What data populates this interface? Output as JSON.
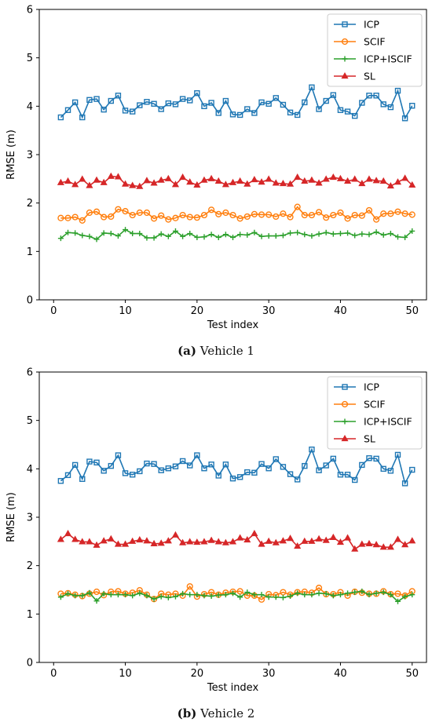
{
  "chart_data": [
    {
      "id": "vehicle1",
      "type": "line",
      "caption_letter": "(a)",
      "caption_text": " Vehicle 1",
      "xlabel": "Test index",
      "ylabel": "RMSE (m)",
      "xlim": [
        -2,
        52
      ],
      "ylim": [
        0,
        6
      ],
      "xticks": [
        0,
        10,
        20,
        30,
        40,
        50
      ],
      "yticks": [
        0,
        1,
        2,
        3,
        4,
        5,
        6
      ],
      "legend_position": "top-right",
      "x": [
        1,
        2,
        3,
        4,
        5,
        6,
        7,
        8,
        9,
        10,
        11,
        12,
        13,
        14,
        15,
        16,
        17,
        18,
        19,
        20,
        21,
        22,
        23,
        24,
        25,
        26,
        27,
        28,
        29,
        30,
        31,
        32,
        33,
        34,
        35,
        36,
        37,
        38,
        39,
        40,
        41,
        42,
        43,
        44,
        45,
        46,
        47,
        48,
        49,
        50
      ],
      "series": [
        {
          "name": "ICP",
          "color": "#1f77b4",
          "marker": "square",
          "values": [
            3.77,
            3.92,
            4.08,
            3.77,
            4.13,
            4.15,
            3.93,
            4.11,
            4.22,
            3.91,
            3.89,
            4.02,
            4.09,
            4.05,
            3.94,
            4.06,
            4.04,
            4.15,
            4.12,
            4.27,
            4.0,
            4.07,
            3.86,
            4.11,
            3.83,
            3.82,
            3.94,
            3.86,
            4.08,
            4.05,
            4.17,
            4.03,
            3.87,
            3.82,
            4.08,
            4.39,
            3.94,
            4.11,
            4.23,
            3.92,
            3.89,
            3.8,
            4.07,
            4.22,
            4.22,
            4.04,
            3.98,
            4.32,
            3.75,
            4.01
          ]
        },
        {
          "name": "SCIF",
          "color": "#ff7f0e",
          "marker": "circle",
          "values": [
            1.69,
            1.69,
            1.71,
            1.64,
            1.8,
            1.82,
            1.71,
            1.72,
            1.87,
            1.83,
            1.75,
            1.8,
            1.8,
            1.68,
            1.74,
            1.66,
            1.69,
            1.75,
            1.71,
            1.7,
            1.75,
            1.86,
            1.77,
            1.8,
            1.75,
            1.68,
            1.72,
            1.77,
            1.76,
            1.76,
            1.72,
            1.78,
            1.71,
            1.92,
            1.75,
            1.75,
            1.81,
            1.7,
            1.75,
            1.8,
            1.68,
            1.75,
            1.74,
            1.85,
            1.66,
            1.78,
            1.78,
            1.82,
            1.78,
            1.76
          ]
        },
        {
          "name": "ICP+ISCIF",
          "color": "#2ca02c",
          "marker": "plus",
          "values": [
            1.27,
            1.39,
            1.38,
            1.33,
            1.31,
            1.25,
            1.38,
            1.37,
            1.32,
            1.45,
            1.37,
            1.37,
            1.28,
            1.28,
            1.36,
            1.31,
            1.42,
            1.31,
            1.37,
            1.29,
            1.3,
            1.35,
            1.29,
            1.35,
            1.29,
            1.35,
            1.34,
            1.39,
            1.31,
            1.32,
            1.32,
            1.33,
            1.38,
            1.39,
            1.35,
            1.32,
            1.36,
            1.39,
            1.36,
            1.37,
            1.38,
            1.33,
            1.36,
            1.35,
            1.4,
            1.34,
            1.37,
            1.3,
            1.29,
            1.42
          ]
        },
        {
          "name": "SL",
          "color": "#d62728",
          "marker": "triangle",
          "values": [
            2.42,
            2.45,
            2.38,
            2.49,
            2.36,
            2.47,
            2.42,
            2.55,
            2.54,
            2.39,
            2.36,
            2.34,
            2.46,
            2.41,
            2.47,
            2.5,
            2.38,
            2.53,
            2.43,
            2.37,
            2.47,
            2.5,
            2.45,
            2.38,
            2.42,
            2.45,
            2.39,
            2.48,
            2.43,
            2.49,
            2.41,
            2.4,
            2.39,
            2.53,
            2.45,
            2.47,
            2.41,
            2.49,
            2.53,
            2.5,
            2.45,
            2.49,
            2.4,
            2.49,
            2.46,
            2.45,
            2.35,
            2.43,
            2.51,
            2.37
          ]
        }
      ]
    },
    {
      "id": "vehicle2",
      "type": "line",
      "caption_letter": "(b)",
      "caption_text": " Vehicle 2",
      "xlabel": "Test index",
      "ylabel": "RMSE (m)",
      "xlim": [
        -2,
        52
      ],
      "ylim": [
        0,
        6
      ],
      "xticks": [
        0,
        10,
        20,
        30,
        40,
        50
      ],
      "yticks": [
        0,
        1,
        2,
        3,
        4,
        5,
        6
      ],
      "legend_position": "top-right",
      "x": [
        1,
        2,
        3,
        4,
        5,
        6,
        7,
        8,
        9,
        10,
        11,
        12,
        13,
        14,
        15,
        16,
        17,
        18,
        19,
        20,
        21,
        22,
        23,
        24,
        25,
        26,
        27,
        28,
        29,
        30,
        31,
        32,
        33,
        34,
        35,
        36,
        37,
        38,
        39,
        40,
        41,
        42,
        43,
        44,
        45,
        46,
        47,
        48,
        49,
        50
      ],
      "series": [
        {
          "name": "ICP",
          "color": "#1f77b4",
          "marker": "square",
          "values": [
            3.75,
            3.87,
            4.08,
            3.79,
            4.15,
            4.13,
            3.96,
            4.06,
            4.28,
            3.91,
            3.88,
            3.95,
            4.11,
            4.1,
            3.97,
            4.01,
            4.05,
            4.16,
            4.07,
            4.28,
            4.01,
            4.09,
            3.86,
            4.09,
            3.8,
            3.83,
            3.93,
            3.92,
            4.1,
            4.01,
            4.2,
            4.04,
            3.89,
            3.78,
            4.06,
            4.4,
            3.97,
            4.07,
            4.21,
            3.88,
            3.88,
            3.77,
            4.08,
            4.22,
            4.21,
            4.0,
            3.96,
            4.29,
            3.7,
            3.98
          ]
        },
        {
          "name": "SCIF",
          "color": "#ff7f0e",
          "marker": "circle",
          "values": [
            1.42,
            1.43,
            1.4,
            1.37,
            1.42,
            1.46,
            1.39,
            1.46,
            1.47,
            1.42,
            1.44,
            1.49,
            1.4,
            1.31,
            1.42,
            1.4,
            1.42,
            1.38,
            1.57,
            1.36,
            1.41,
            1.45,
            1.4,
            1.44,
            1.46,
            1.47,
            1.38,
            1.38,
            1.3,
            1.41,
            1.39,
            1.45,
            1.4,
            1.45,
            1.46,
            1.44,
            1.54,
            1.41,
            1.41,
            1.45,
            1.38,
            1.46,
            1.44,
            1.42,
            1.42,
            1.47,
            1.41,
            1.42,
            1.38,
            1.47
          ]
        },
        {
          "name": "ICP+ISCIF",
          "color": "#2ca02c",
          "marker": "plus",
          "values": [
            1.35,
            1.42,
            1.38,
            1.38,
            1.44,
            1.27,
            1.42,
            1.4,
            1.4,
            1.4,
            1.38,
            1.43,
            1.38,
            1.31,
            1.36,
            1.34,
            1.36,
            1.42,
            1.4,
            1.4,
            1.38,
            1.37,
            1.39,
            1.4,
            1.43,
            1.35,
            1.45,
            1.4,
            1.4,
            1.35,
            1.35,
            1.34,
            1.37,
            1.43,
            1.4,
            1.4,
            1.43,
            1.42,
            1.38,
            1.4,
            1.43,
            1.45,
            1.47,
            1.4,
            1.43,
            1.45,
            1.4,
            1.26,
            1.36,
            1.4
          ]
        },
        {
          "name": "SL",
          "color": "#d62728",
          "marker": "triangle",
          "values": [
            2.54,
            2.66,
            2.54,
            2.49,
            2.49,
            2.42,
            2.51,
            2.55,
            2.44,
            2.44,
            2.5,
            2.53,
            2.51,
            2.45,
            2.46,
            2.51,
            2.63,
            2.47,
            2.49,
            2.48,
            2.49,
            2.52,
            2.49,
            2.47,
            2.49,
            2.57,
            2.53,
            2.66,
            2.44,
            2.5,
            2.47,
            2.51,
            2.56,
            2.4,
            2.5,
            2.5,
            2.55,
            2.52,
            2.58,
            2.48,
            2.57,
            2.34,
            2.44,
            2.45,
            2.43,
            2.38,
            2.38,
            2.54,
            2.43,
            2.51
          ]
        }
      ]
    }
  ]
}
